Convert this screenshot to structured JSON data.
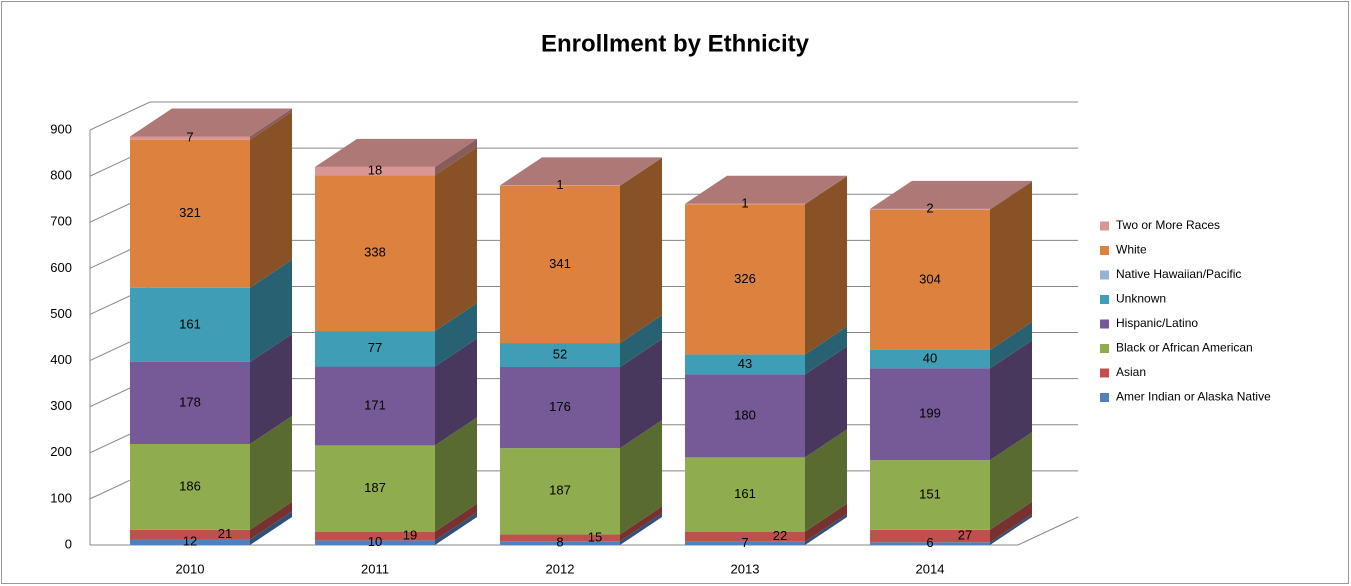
{
  "chart_data": {
    "type": "bar3d_stacked",
    "title": "Enrollment by Ethnicity",
    "categories": [
      "2010",
      "2011",
      "2012",
      "2013",
      "2014"
    ],
    "series": [
      {
        "name": "Amer Indian or Alaska Native",
        "color": "#4f81bd",
        "values": [
          12,
          10,
          8,
          7,
          6
        ]
      },
      {
        "name": "Asian",
        "color": "#c0504d",
        "values": [
          21,
          19,
          15,
          22,
          27
        ]
      },
      {
        "name": "Black or African American",
        "color": "#8fac4f",
        "values": [
          186,
          187,
          187,
          161,
          151
        ]
      },
      {
        "name": "Hispanic/Latino",
        "color": "#765a98",
        "values": [
          178,
          171,
          176,
          180,
          199
        ]
      },
      {
        "name": "Unknown",
        "color": "#409db6",
        "values": [
          161,
          77,
          52,
          43,
          40
        ]
      },
      {
        "name": "Native Hawaiian/Pacific",
        "color": "#95b3d7",
        "values": [
          0,
          0,
          0,
          0,
          0
        ]
      },
      {
        "name": "White",
        "color": "#dd823e",
        "values": [
          321,
          338,
          341,
          326,
          304
        ]
      },
      {
        "name": "Two or More Races",
        "color": "#d99694",
        "values": [
          7,
          18,
          1,
          1,
          2
        ]
      }
    ],
    "ylim": [
      0,
      900
    ],
    "yticks": [
      0,
      100,
      200,
      300,
      400,
      500,
      600,
      700,
      800,
      900
    ],
    "grid": true,
    "legend": "right"
  }
}
